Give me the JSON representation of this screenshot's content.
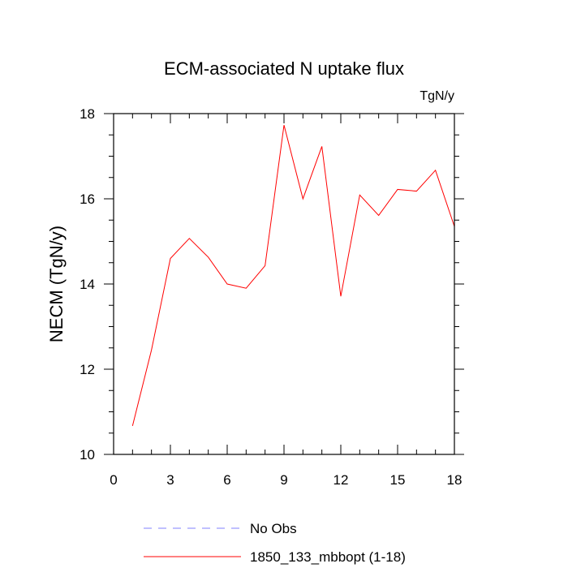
{
  "chart_data": {
    "type": "line",
    "title": "ECM-associated N uptake flux",
    "units_label": "TgN/y",
    "xlabel": "",
    "ylabel": "NECM  (TgN/y)",
    "xlim": [
      0,
      18
    ],
    "ylim": [
      10,
      18
    ],
    "x_ticks": [
      "0",
      "3",
      "6",
      "9",
      "12",
      "15",
      "18"
    ],
    "y_ticks": [
      "10",
      "12",
      "14",
      "16",
      "18"
    ],
    "grid": false,
    "legend_position": "bottom",
    "series": [
      {
        "name": "No Obs",
        "color": "#8080ff",
        "dash": "dashed",
        "x": [],
        "y": []
      },
      {
        "name": "1850_133_mbbopt (1-18)",
        "color": "#ff0000",
        "dash": "solid",
        "x": [
          1,
          2,
          3,
          4,
          5,
          6,
          7,
          8,
          9,
          10,
          11,
          12,
          13,
          14,
          15,
          16,
          17,
          18
        ],
        "y": [
          10.67,
          12.45,
          14.6,
          15.07,
          14.63,
          14.0,
          13.9,
          14.43,
          17.73,
          16.0,
          17.23,
          13.71,
          16.09,
          15.61,
          16.22,
          16.18,
          16.67,
          15.35
        ]
      }
    ]
  }
}
